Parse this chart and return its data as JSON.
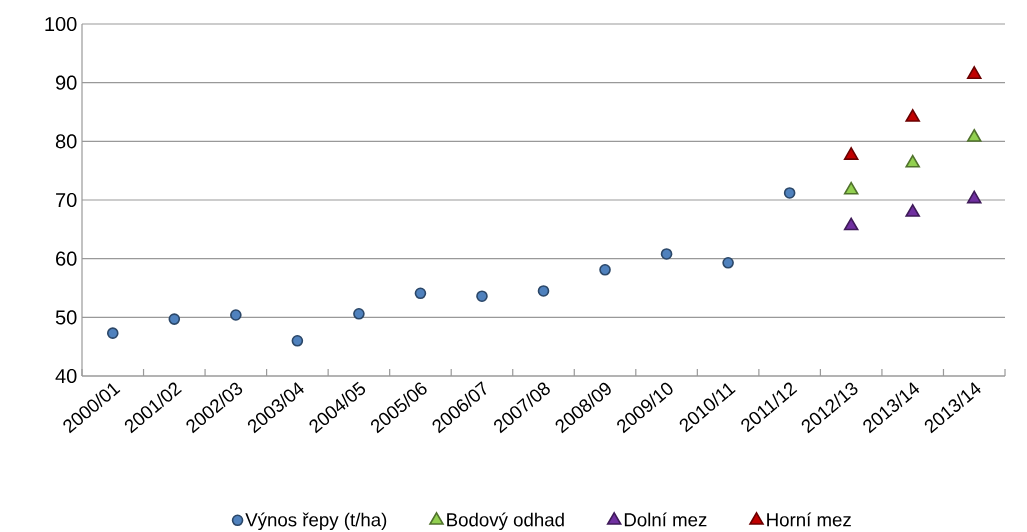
{
  "chart_data": {
    "type": "scatter",
    "categories": [
      "2000/01",
      "2001/02",
      "2002/03",
      "2003/04",
      "2004/05",
      "2005/06",
      "2006/07",
      "2007/08",
      "2008/09",
      "2009/10",
      "2010/11",
      "2011/12",
      "2012/13",
      "2013/14",
      "2013/14"
    ],
    "series": [
      {
        "name": "Výnos řepy (t/ha)",
        "color": "#4f81bd",
        "marker": "circle",
        "values": [
          47.3,
          49.7,
          50.4,
          46.0,
          50.6,
          54.1,
          53.6,
          54.5,
          58.1,
          60.8,
          59.3,
          71.2,
          null,
          null,
          null
        ]
      },
      {
        "name": "Bodový odhad",
        "color": "#92d050",
        "marker": "triangle",
        "values": [
          null,
          null,
          null,
          null,
          null,
          null,
          null,
          null,
          null,
          null,
          null,
          null,
          71.7,
          76.3,
          80.7
        ]
      },
      {
        "name": "Dolní mez",
        "color": "#7030a0",
        "marker": "triangle",
        "values": [
          null,
          null,
          null,
          null,
          null,
          null,
          null,
          null,
          null,
          null,
          null,
          null,
          65.6,
          67.9,
          70.2
        ]
      },
      {
        "name": "Horní mez",
        "color": "#c00000",
        "marker": "triangle",
        "values": [
          null,
          null,
          null,
          null,
          null,
          null,
          null,
          null,
          null,
          null,
          null,
          null,
          77.6,
          84.1,
          91.4
        ]
      }
    ],
    "ylim": [
      40,
      100
    ],
    "yticks": [
      40,
      50,
      60,
      70,
      80,
      90,
      100
    ],
    "grid": "y",
    "legend": "bottom"
  }
}
